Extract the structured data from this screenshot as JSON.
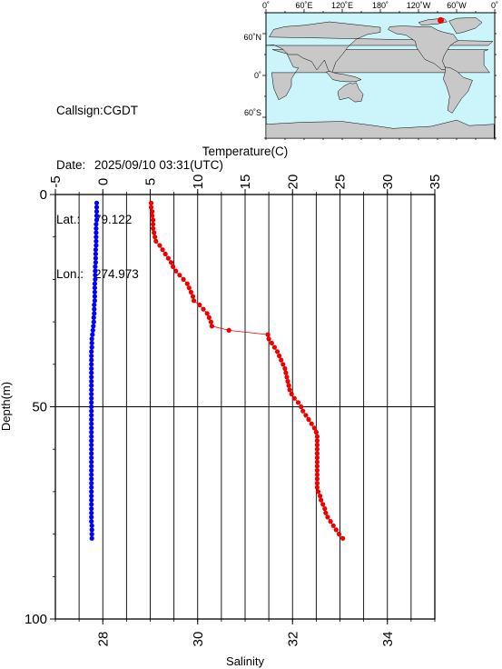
{
  "station": {
    "callsign_label": "Callsign:",
    "callsign": "CGDT",
    "date_label": "Date:",
    "date": "2025/09/10 03:31(UTC)",
    "lat_label": "Lat.:",
    "lat": "79.122",
    "lon_label": "Lon.:",
    "lon": "274.973"
  },
  "map": {
    "top_ticks": [
      "0˚",
      "60˚E",
      "120˚E",
      "180˚",
      "120˚W",
      "60˚W",
      "0˚"
    ],
    "lat_ticks": [
      "60˚N",
      "0˚",
      "60˚S"
    ],
    "ocean_color": "#ccf4fb",
    "land_color": "#c8c8c8",
    "marker_color": "#ff0000",
    "marker": {
      "lon": 274.973,
      "lat": 79.122
    }
  },
  "chart_data": [
    {
      "type": "scatter",
      "name": "Temperature",
      "xlabel": "Temperature(C)",
      "xlim": [
        -5,
        35
      ],
      "xticks": [
        "-5",
        "0",
        "5",
        "10",
        "15",
        "20",
        "25",
        "30",
        "35"
      ],
      "ylabel": "Depth(m)",
      "ylim": [
        100,
        0
      ],
      "yticks": [
        "0",
        "50",
        "100"
      ],
      "color": "#ee0000",
      "points": [
        [
          5.1,
          2
        ],
        [
          5.1,
          3
        ],
        [
          5.2,
          4
        ],
        [
          5.2,
          5
        ],
        [
          5.3,
          6
        ],
        [
          5.3,
          7
        ],
        [
          5.3,
          8
        ],
        [
          5.4,
          9
        ],
        [
          5.5,
          10
        ],
        [
          5.6,
          11
        ],
        [
          6,
          12
        ],
        [
          6.3,
          13
        ],
        [
          6.6,
          14
        ],
        [
          6.9,
          15
        ],
        [
          7.2,
          16
        ],
        [
          7.4,
          17
        ],
        [
          7.7,
          18
        ],
        [
          8.1,
          19
        ],
        [
          8.5,
          20
        ],
        [
          8.9,
          21
        ],
        [
          9.1,
          22
        ],
        [
          9.3,
          23
        ],
        [
          9.5,
          24
        ],
        [
          9.6,
          25
        ],
        [
          10.2,
          26
        ],
        [
          10.6,
          27
        ],
        [
          11,
          28
        ],
        [
          11.2,
          29
        ],
        [
          11.4,
          30
        ],
        [
          11.5,
          31
        ],
        [
          13.3,
          32
        ],
        [
          17.4,
          33
        ],
        [
          17.5,
          34
        ],
        [
          17.8,
          35
        ],
        [
          18.1,
          36
        ],
        [
          18.4,
          37
        ],
        [
          18.6,
          38
        ],
        [
          18.8,
          39
        ],
        [
          19,
          40
        ],
        [
          19.2,
          41
        ],
        [
          19.3,
          42
        ],
        [
          19.4,
          43
        ],
        [
          19.5,
          44
        ],
        [
          19.6,
          45
        ],
        [
          19.7,
          46
        ],
        [
          19.9,
          47
        ],
        [
          20.2,
          48
        ],
        [
          20.6,
          49
        ],
        [
          20.9,
          50
        ],
        [
          21.1,
          51
        ],
        [
          21.4,
          52
        ],
        [
          21.7,
          53
        ],
        [
          22,
          54
        ],
        [
          22.3,
          55
        ],
        [
          22.5,
          56
        ],
        [
          22.6,
          57
        ],
        [
          22.6,
          58
        ],
        [
          22.6,
          59
        ],
        [
          22.6,
          60
        ],
        [
          22.6,
          61
        ],
        [
          22.6,
          62
        ],
        [
          22.6,
          63
        ],
        [
          22.6,
          64
        ],
        [
          22.6,
          65
        ],
        [
          22.6,
          66
        ],
        [
          22.6,
          67
        ],
        [
          22.6,
          68
        ],
        [
          22.6,
          69
        ],
        [
          22.7,
          70
        ],
        [
          22.9,
          71
        ],
        [
          23,
          72
        ],
        [
          23.2,
          73
        ],
        [
          23.4,
          74
        ],
        [
          23.5,
          75
        ],
        [
          23.7,
          76
        ],
        [
          24,
          77
        ],
        [
          24.3,
          78
        ],
        [
          24.6,
          79
        ],
        [
          24.9,
          80
        ],
        [
          25.3,
          81
        ]
      ]
    },
    {
      "type": "scatter",
      "name": "Salinity",
      "xlabel": "Salinity",
      "xlim": [
        27,
        35
      ],
      "xticks": [
        "28",
        "30",
        "32",
        "34"
      ],
      "ylim": [
        100,
        0
      ],
      "color": "#0000ff",
      "points": [
        [
          27.87,
          2
        ],
        [
          27.87,
          3
        ],
        [
          27.87,
          4
        ],
        [
          27.87,
          5
        ],
        [
          27.87,
          6
        ],
        [
          27.86,
          7
        ],
        [
          27.86,
          8
        ],
        [
          27.86,
          9
        ],
        [
          27.86,
          10
        ],
        [
          27.86,
          11
        ],
        [
          27.86,
          12
        ],
        [
          27.85,
          13
        ],
        [
          27.85,
          14
        ],
        [
          27.85,
          15
        ],
        [
          27.85,
          16
        ],
        [
          27.84,
          17
        ],
        [
          27.84,
          18
        ],
        [
          27.84,
          19
        ],
        [
          27.84,
          20
        ],
        [
          27.83,
          21
        ],
        [
          27.83,
          22
        ],
        [
          27.83,
          23
        ],
        [
          27.83,
          24
        ],
        [
          27.83,
          25
        ],
        [
          27.82,
          26
        ],
        [
          27.82,
          27
        ],
        [
          27.82,
          28
        ],
        [
          27.81,
          29
        ],
        [
          27.81,
          30
        ],
        [
          27.8,
          31
        ],
        [
          27.79,
          32
        ],
        [
          27.78,
          33
        ],
        [
          27.77,
          34
        ],
        [
          27.77,
          35
        ],
        [
          27.77,
          36
        ],
        [
          27.76,
          37
        ],
        [
          27.76,
          38
        ],
        [
          27.76,
          39
        ],
        [
          27.76,
          40
        ],
        [
          27.76,
          41
        ],
        [
          27.76,
          42
        ],
        [
          27.76,
          43
        ],
        [
          27.76,
          44
        ],
        [
          27.76,
          45
        ],
        [
          27.76,
          46
        ],
        [
          27.76,
          47
        ],
        [
          27.76,
          48
        ],
        [
          27.76,
          49
        ],
        [
          27.76,
          50
        ],
        [
          27.76,
          51
        ],
        [
          27.76,
          52
        ],
        [
          27.76,
          53
        ],
        [
          27.76,
          54
        ],
        [
          27.76,
          55
        ],
        [
          27.76,
          56
        ],
        [
          27.76,
          57
        ],
        [
          27.76,
          58
        ],
        [
          27.76,
          59
        ],
        [
          27.76,
          60
        ],
        [
          27.76,
          61
        ],
        [
          27.76,
          62
        ],
        [
          27.76,
          63
        ],
        [
          27.76,
          64
        ],
        [
          27.76,
          65
        ],
        [
          27.76,
          66
        ],
        [
          27.76,
          67
        ],
        [
          27.76,
          68
        ],
        [
          27.76,
          69
        ],
        [
          27.76,
          70
        ],
        [
          27.76,
          71
        ],
        [
          27.76,
          72
        ],
        [
          27.76,
          73
        ],
        [
          27.76,
          74
        ],
        [
          27.76,
          75
        ],
        [
          27.76,
          76
        ],
        [
          27.76,
          77
        ],
        [
          27.77,
          78
        ],
        [
          27.77,
          79
        ],
        [
          27.77,
          80
        ],
        [
          27.77,
          81
        ]
      ]
    }
  ]
}
